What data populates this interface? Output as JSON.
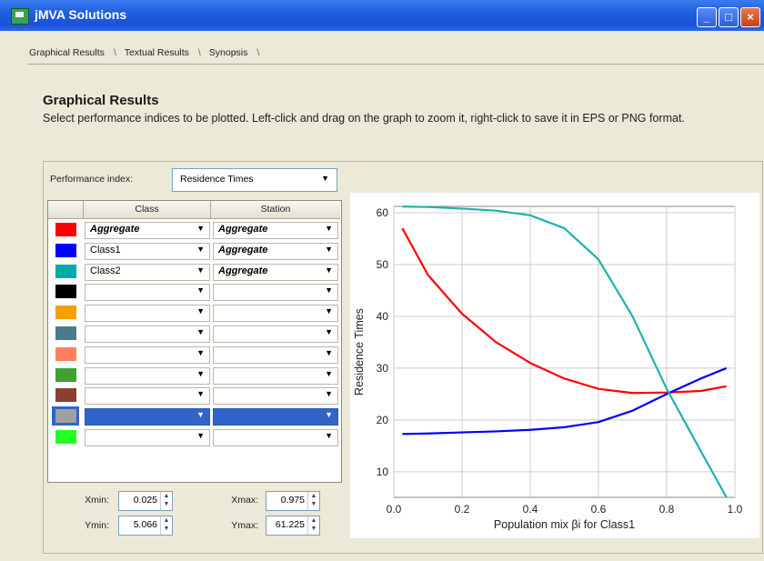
{
  "window": {
    "title": "jMVA Solutions"
  },
  "tabs": [
    {
      "label": "Graphical Results"
    },
    {
      "label": "Textual Results"
    },
    {
      "label": "Synopsis"
    }
  ],
  "page": {
    "heading": "Graphical Results",
    "description": "Select performance indices to be plotted. Left-click and drag on the graph to zoom it, right-click to save it in EPS or PNG format."
  },
  "performance_index": {
    "label": "Performance index:",
    "value": "Residence Times"
  },
  "table": {
    "headers": {
      "class": "Class",
      "station": "Station"
    },
    "rows": [
      {
        "color": "#ff0000",
        "class": "Aggregate",
        "station": "Aggregate",
        "class_bold": true,
        "station_bold": true
      },
      {
        "color": "#0000ff",
        "class": "Class1",
        "station": "Aggregate",
        "class_bold": false,
        "station_bold": true
      },
      {
        "color": "#00aaaa",
        "class": "Class2",
        "station": "Aggregate",
        "class_bold": false,
        "station_bold": true
      },
      {
        "color": "#000000",
        "class": "",
        "station": "",
        "class_bold": false,
        "station_bold": false
      },
      {
        "color": "#f5a000",
        "class": "",
        "station": "",
        "class_bold": false,
        "station_bold": false
      },
      {
        "color": "#4a7a8c",
        "class": "",
        "station": "",
        "class_bold": false,
        "station_bold": false
      },
      {
        "color": "#ff8060",
        "class": "",
        "station": "",
        "class_bold": false,
        "station_bold": false
      },
      {
        "color": "#40a030",
        "class": "",
        "station": "",
        "class_bold": false,
        "station_bold": false
      },
      {
        "color": "#8a4030",
        "class": "",
        "station": "",
        "class_bold": false,
        "station_bold": false
      },
      {
        "color": "#a0a0a0",
        "class": "",
        "station": "",
        "class_bold": false,
        "station_bold": false,
        "selected": true
      },
      {
        "color": "#22ff22",
        "class": "",
        "station": "",
        "class_bold": false,
        "station_bold": false
      }
    ]
  },
  "limits": {
    "xmin_label": "Xmin:",
    "xmin": "0.025",
    "xmax_label": "Xmax:",
    "xmax": "0.975",
    "ymin_label": "Ymin:",
    "ymin": "5.066",
    "ymax_label": "Ymax:",
    "ymax": "61.225"
  },
  "chart_data": {
    "type": "line",
    "xlabel": "Population mix βi for Class1",
    "ylabel": "Residence Times",
    "xlim": [
      0.0,
      1.0
    ],
    "ylim": [
      5.066,
      61.225
    ],
    "xticks": [
      "0.0",
      "0.2",
      "0.4",
      "0.6",
      "0.8",
      "1.0"
    ],
    "yticks": [
      "10",
      "20",
      "30",
      "40",
      "50",
      "60"
    ],
    "grid": true,
    "series": [
      {
        "color": "#ff0000",
        "x": [
          0.025,
          0.1,
          0.2,
          0.3,
          0.4,
          0.5,
          0.6,
          0.7,
          0.8,
          0.9,
          0.975
        ],
        "y": [
          57.0,
          48.0,
          40.5,
          35.0,
          31.0,
          28.0,
          26.0,
          25.2,
          25.3,
          25.6,
          26.5
        ]
      },
      {
        "color": "#0000ff",
        "x": [
          0.025,
          0.1,
          0.2,
          0.3,
          0.4,
          0.5,
          0.6,
          0.7,
          0.8,
          0.9,
          0.975
        ],
        "y": [
          17.3,
          17.4,
          17.6,
          17.8,
          18.1,
          18.6,
          19.6,
          21.8,
          25.0,
          28.0,
          30.0
        ]
      },
      {
        "color": "#20b0b0",
        "x": [
          0.025,
          0.1,
          0.2,
          0.3,
          0.4,
          0.5,
          0.6,
          0.7,
          0.8,
          0.9,
          0.975
        ],
        "y": [
          61.2,
          61.1,
          60.8,
          60.4,
          59.5,
          57.0,
          51.0,
          40.0,
          26.0,
          14.0,
          5.1
        ]
      }
    ]
  }
}
